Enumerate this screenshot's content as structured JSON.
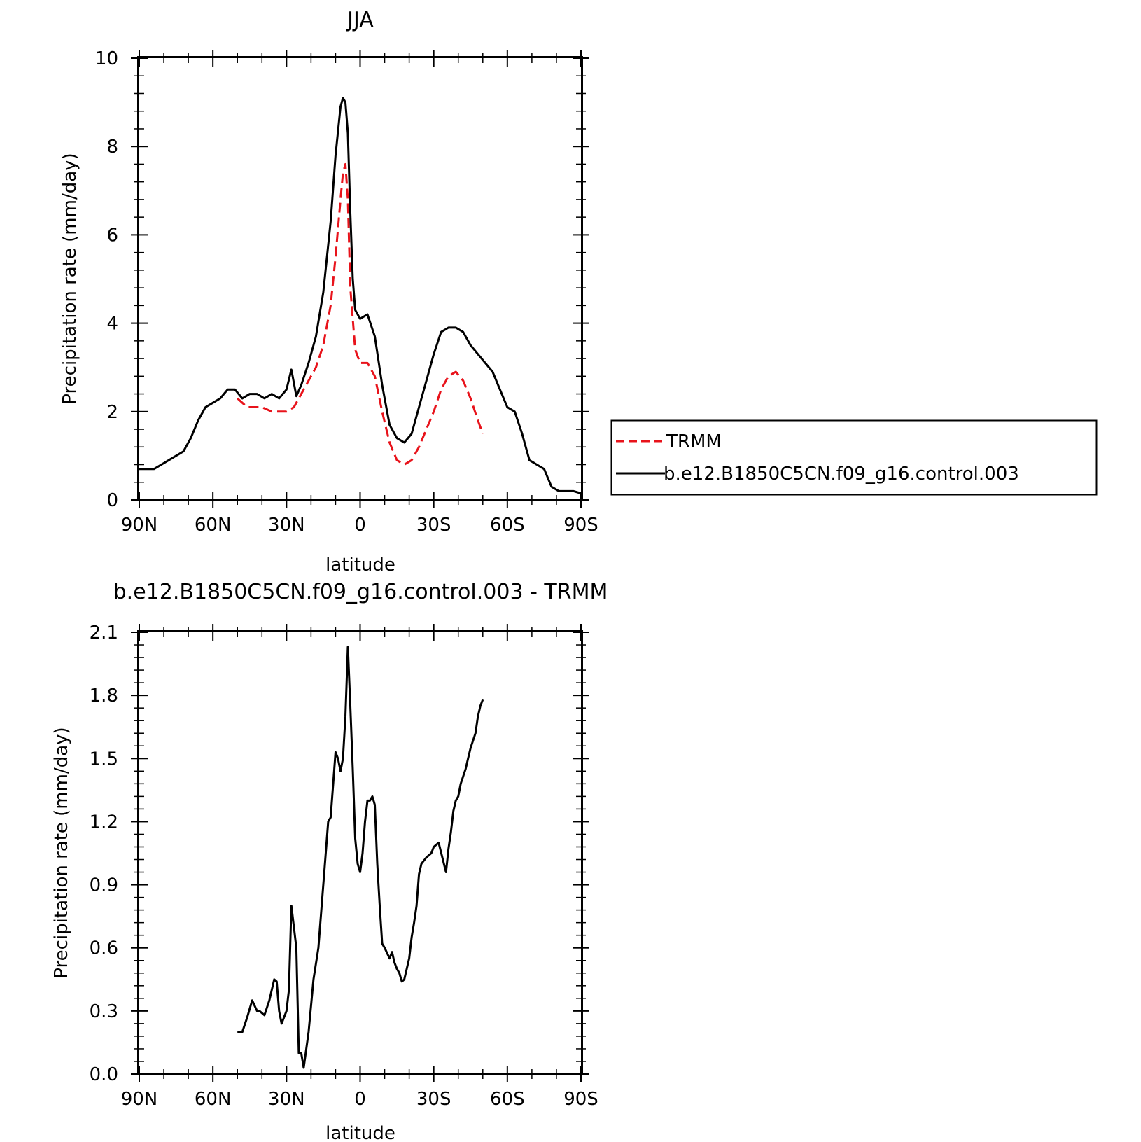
{
  "chart_data": [
    {
      "type": "line",
      "title": "JJA",
      "xlabel": "latitude",
      "ylabel": "Precipitation rate (mm/day)",
      "xlim": [
        90,
        -90
      ],
      "ylim": [
        0,
        10
      ],
      "x_ticks": [
        90,
        60,
        30,
        0,
        -30,
        -60,
        -90
      ],
      "x_tick_labels": [
        "90N",
        "60N",
        "30N",
        "0",
        "30S",
        "60S",
        "90S"
      ],
      "y_ticks": [
        0,
        2,
        4,
        6,
        8,
        10
      ],
      "y_tick_labels": [
        "0",
        "2",
        "4",
        "6",
        "8",
        "10"
      ],
      "legend": {
        "placement": "right"
      },
      "series": [
        {
          "name": "TRMM",
          "color": "#e8131b",
          "dash": "dashed",
          "x": [
            50,
            46,
            43,
            40,
            36,
            33,
            30,
            27,
            24,
            21,
            18,
            15,
            12,
            10,
            8,
            7,
            6,
            5,
            4,
            2,
            0,
            -3,
            -6,
            -9,
            -12,
            -15,
            -18,
            -21,
            -24,
            -27,
            -30,
            -33,
            -36,
            -39,
            -42,
            -45,
            -48,
            -50
          ],
          "y": [
            2.3,
            2.1,
            2.1,
            2.1,
            2.0,
            2.0,
            2.0,
            2.1,
            2.4,
            2.7,
            3.0,
            3.5,
            4.4,
            5.5,
            6.8,
            7.4,
            7.6,
            6.8,
            4.8,
            3.4,
            3.1,
            3.1,
            2.8,
            2.0,
            1.3,
            0.9,
            0.8,
            0.9,
            1.2,
            1.6,
            2.0,
            2.5,
            2.8,
            2.9,
            2.7,
            2.3,
            1.8,
            1.5
          ]
        },
        {
          "name": "b.e12.B1850C5CN.f09_g16.control.003",
          "color": "#000000",
          "dash": "solid",
          "x": [
            90,
            87,
            84,
            81,
            78,
            75,
            72,
            69,
            66,
            63,
            60,
            57,
            54,
            51,
            48,
            45,
            42,
            39,
            36,
            33,
            30,
            28,
            26,
            24,
            21,
            18,
            15,
            12,
            10,
            8,
            7,
            6,
            5,
            4,
            3,
            2,
            0,
            -3,
            -6,
            -9,
            -12,
            -15,
            -18,
            -21,
            -24,
            -27,
            -30,
            -33,
            -36,
            -39,
            -42,
            -45,
            -48,
            -51,
            -54,
            -57,
            -60,
            -63,
            -66,
            -69,
            -72,
            -75,
            -78,
            -81,
            -84,
            -87,
            -90
          ],
          "y": [
            0.7,
            0.7,
            0.7,
            0.8,
            0.9,
            1.0,
            1.1,
            1.4,
            1.8,
            2.1,
            2.2,
            2.3,
            2.5,
            2.5,
            2.3,
            2.4,
            2.4,
            2.3,
            2.4,
            2.3,
            2.5,
            2.95,
            2.35,
            2.6,
            3.1,
            3.7,
            4.7,
            6.3,
            7.8,
            8.9,
            9.1,
            9.0,
            8.3,
            6.5,
            5.0,
            4.3,
            4.1,
            4.2,
            3.7,
            2.6,
            1.7,
            1.4,
            1.3,
            1.5,
            2.1,
            2.7,
            3.3,
            3.8,
            3.9,
            3.9,
            3.8,
            3.5,
            3.3,
            3.1,
            2.9,
            2.5,
            2.1,
            2.0,
            1.5,
            0.9,
            0.8,
            0.7,
            0.3,
            0.2,
            0.2,
            0.2,
            0.15
          ]
        }
      ]
    },
    {
      "type": "line",
      "title": "b.e12.B1850C5CN.f09_g16.control.003 - TRMM",
      "xlabel": "latitude",
      "ylabel": "Precipitation rate (mm/day)",
      "xlim": [
        90,
        -90
      ],
      "ylim": [
        0,
        2.1
      ],
      "x_ticks": [
        90,
        60,
        30,
        0,
        -30,
        -60,
        -90
      ],
      "x_tick_labels": [
        "90N",
        "60N",
        "30N",
        "0",
        "30S",
        "60S",
        "90S"
      ],
      "y_ticks": [
        0,
        0.3,
        0.6,
        0.9,
        1.2,
        1.5,
        1.8,
        2.1
      ],
      "y_tick_labels": [
        "0.0",
        "0.3",
        "0.6",
        "0.9",
        "1.2",
        "1.5",
        "1.8",
        "2.1"
      ],
      "series": [
        {
          "color": "#000000",
          "dash": "solid",
          "x": [
            50,
            48,
            46,
            44,
            42,
            41,
            39,
            37,
            35,
            34,
            33,
            32,
            30,
            29,
            28,
            26,
            25,
            24,
            23,
            21,
            19,
            17,
            15,
            13,
            12,
            10,
            9,
            8,
            7,
            6,
            5,
            4,
            3,
            2,
            1,
            0,
            -1,
            -2,
            -3,
            -4,
            -5,
            -6,
            -7,
            -8,
            -9,
            -10,
            -12,
            -13,
            -14,
            -15,
            -16,
            -17,
            -18,
            -19,
            -20,
            -21,
            -22,
            -23,
            -24,
            -25,
            -27,
            -29,
            -30,
            -32,
            -35,
            -36,
            -37,
            -38,
            -39,
            -40,
            -41,
            -43,
            -44,
            -45,
            -47,
            -48,
            -49,
            -50
          ],
          "y": [
            0.2,
            0.2,
            0.27,
            0.35,
            0.3,
            0.3,
            0.28,
            0.35,
            0.45,
            0.44,
            0.3,
            0.24,
            0.3,
            0.4,
            0.8,
            0.6,
            0.1,
            0.1,
            0.03,
            0.2,
            0.45,
            0.6,
            0.9,
            1.2,
            1.22,
            1.53,
            1.5,
            1.44,
            1.5,
            1.7,
            2.03,
            1.75,
            1.45,
            1.12,
            1.0,
            0.96,
            1.05,
            1.2,
            1.3,
            1.3,
            1.32,
            1.28,
            1.0,
            0.8,
            0.62,
            0.6,
            0.55,
            0.58,
            0.53,
            0.5,
            0.48,
            0.44,
            0.45,
            0.5,
            0.55,
            0.65,
            0.72,
            0.8,
            0.95,
            1.0,
            1.03,
            1.05,
            1.08,
            1.1,
            0.96,
            1.07,
            1.15,
            1.25,
            1.3,
            1.32,
            1.38,
            1.45,
            1.5,
            1.55,
            1.62,
            1.7,
            1.75,
            1.78
          ]
        }
      ]
    }
  ]
}
